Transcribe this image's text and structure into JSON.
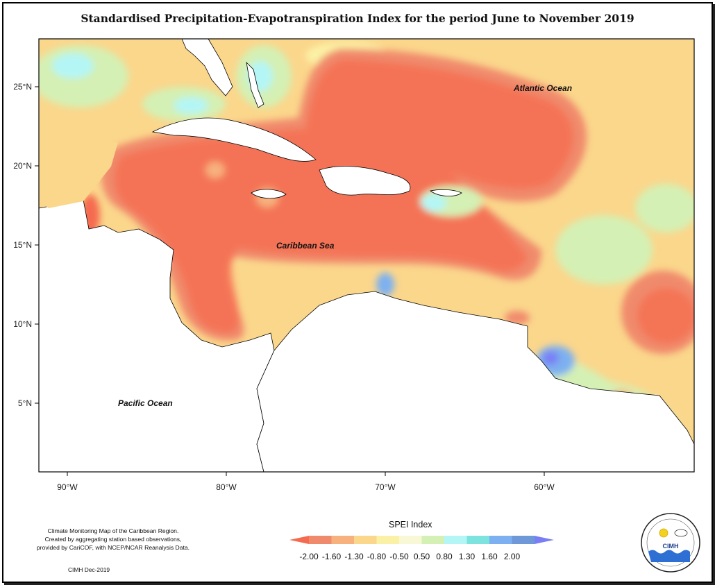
{
  "title": "Standardised Precipitation-Evapotranspiration Index for the period June to November 2019",
  "map": {
    "labels": {
      "atlantic": "Atlantic Ocean",
      "caribbean": "Caribbean Sea",
      "pacific": "Pacific Ocean"
    },
    "lat_ticks": [
      "25°N",
      "20°N",
      "15°N",
      "10°N",
      "5°N"
    ],
    "lon_ticks": [
      "90°W",
      "80°W",
      "70°W",
      "60°W"
    ],
    "extent": {
      "lon": [
        -92,
        -51
      ],
      "lat": [
        1.2,
        28
      ]
    }
  },
  "legend": {
    "title": "SPEI Index",
    "breaks": [
      "-2.00",
      "-1.60",
      "-1.30",
      "-0.80",
      "-0.50",
      "0.50",
      "0.80",
      "1.30",
      "1.60",
      "2.00"
    ],
    "colors": [
      "#f56b4f",
      "#f08a6c",
      "#f7b17e",
      "#fbd78c",
      "#fbf1a6",
      "#f8f7d6",
      "#d4f0b4",
      "#b4f6f6",
      "#7de3df",
      "#7db0f0",
      "#6e98d8",
      "#7a7ef5"
    ]
  },
  "credits": {
    "line1": "Climate Monitoring Map of the Caribbean Region.",
    "line2": "Created by aggregating station based observations,",
    "line3": "provided by CariCOF, with NCEP/NCAR Reanalysis Data.",
    "date": "CIMH Dec-2019"
  },
  "logo": {
    "text": "CIMH"
  }
}
